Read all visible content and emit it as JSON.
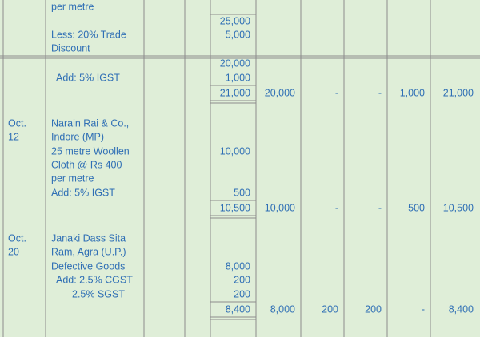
{
  "entries": [
    {
      "date": [],
      "particulars": [
        "per metre",
        "Less: 20% Trade",
        "Discount"
      ],
      "amounts": [
        "25,000",
        "5,000"
      ]
    },
    {
      "date": [],
      "particulars": [
        "Add: 5% IGST"
      ],
      "amounts": [
        "20,000",
        "1,000"
      ],
      "total": "21,000",
      "columns": [
        "20,000",
        "-",
        "-",
        "1,000",
        "21,000"
      ]
    },
    {
      "date": [
        "Oct.",
        "12"
      ],
      "particulars": [
        "Narain Rai & Co.,",
        "Indore (MP)",
        "25 metre Woollen",
        "Cloth @ Rs 400",
        "per metre",
        "Add: 5% IGST"
      ],
      "amounts": [
        "10,000",
        "500"
      ],
      "total": "10,500",
      "columns": [
        "10,000",
        "-",
        "-",
        "500",
        "10,500"
      ]
    },
    {
      "date": [
        "Oct.",
        "20"
      ],
      "particulars": [
        "Janaki Dass Sita",
        "Ram, Agra (U.P.)",
        "Defective Goods",
        "Add: 2.5% CGST",
        "2.5% SGST"
      ],
      "amounts": [
        "8,000",
        "200",
        "200"
      ],
      "total": "8,400",
      "columns": [
        "8,000",
        "200",
        "200",
        "-",
        "8,400"
      ]
    }
  ]
}
